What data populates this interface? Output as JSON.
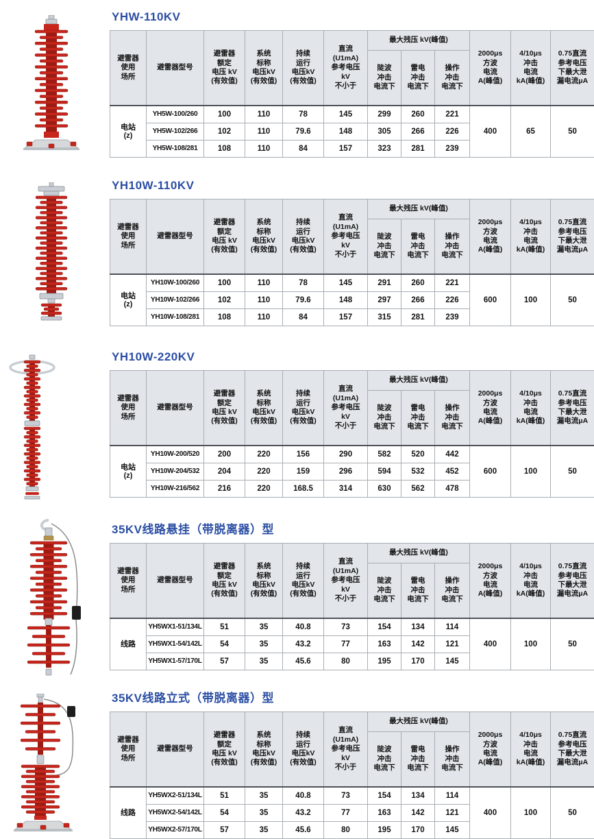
{
  "table_header": {
    "location": "避雷器\n使用\n场所",
    "model": "避雷器型号",
    "rated": "避雷器\n额定\n电压 kV\n(有效值)",
    "nominal": "系统\n标称\n电压kV\n(有效值)",
    "continuous": "持续\n运行\n电压kV\n(有效值)",
    "dc_ref": "直流\n(U1mA)\n参考电压\nkV\n不小于",
    "residual_group": "最大残压 kV(峰值)",
    "steep": "陡波\n冲击\n电流下",
    "lightning": "雷电\n冲击\n电流下",
    "switching": "操作\n冲击\n电流下",
    "square_wave": "2000μs\n方波\n电流\nA(峰值)",
    "impulse": "4/10μs\n冲击\n电流\nkA(峰值)",
    "leakage": "0.75直流\n参考电压\n下最大泄\n漏电流μA"
  },
  "accent_color": "#2b4ea4",
  "sections": [
    {
      "title": "YHW-110KV",
      "location": "电站\n(z)",
      "image_name": "station-pedestal-arrester-photo",
      "rows": [
        {
          "model": "YH5W-100/260",
          "values": [
            "100",
            "110",
            "78",
            "145",
            "299",
            "260",
            "221"
          ]
        },
        {
          "model": "YH5W-102/266",
          "values": [
            "102",
            "110",
            "79.6",
            "148",
            "305",
            "266",
            "226"
          ]
        },
        {
          "model": "YH5W-108/281",
          "values": [
            "108",
            "110",
            "84",
            "157",
            "323",
            "281",
            "239"
          ]
        }
      ],
      "square_wave": "400",
      "impulse": "65",
      "leakage": "50"
    },
    {
      "title": "YH10W-110KV",
      "location": "电站\n(z)",
      "image_name": "flanged-station-arrester-photo",
      "rows": [
        {
          "model": "YH10W-100/260",
          "values": [
            "100",
            "110",
            "78",
            "145",
            "291",
            "260",
            "221"
          ]
        },
        {
          "model": "YH10W-102/266",
          "values": [
            "102",
            "110",
            "79.6",
            "148",
            "297",
            "266",
            "226"
          ]
        },
        {
          "model": "YH10W-108/281",
          "values": [
            "108",
            "110",
            "84",
            "157",
            "315",
            "281",
            "239"
          ]
        }
      ],
      "square_wave": "600",
      "impulse": "100",
      "leakage": "50"
    },
    {
      "title": "YH10W-220KV",
      "location": "电站\n(z)",
      "image_name": "220kv-suspension-arrester-photo",
      "rows": [
        {
          "model": "YH10W-200/520",
          "values": [
            "200",
            "220",
            "156",
            "290",
            "582",
            "520",
            "442"
          ]
        },
        {
          "model": "YH10W-204/532",
          "values": [
            "204",
            "220",
            "159",
            "296",
            "594",
            "532",
            "452"
          ]
        },
        {
          "model": "YH10W-216/562",
          "values": [
            "216",
            "220",
            "168.5",
            "314",
            "630",
            "562",
            "478"
          ]
        }
      ],
      "square_wave": "600",
      "impulse": "100",
      "leakage": "50"
    },
    {
      "title": "35KV线路悬挂（带脱离器）型",
      "location": "线路",
      "image_name": "35kv-hanging-disconnector-arrester-photo",
      "rows": [
        {
          "model": "YH5WX1-51/134L",
          "values": [
            "51",
            "35",
            "40.8",
            "73",
            "154",
            "134",
            "114"
          ]
        },
        {
          "model": "YH5WX1-54/142L",
          "values": [
            "54",
            "35",
            "43.2",
            "77",
            "163",
            "142",
            "121"
          ]
        },
        {
          "model": "YH5WX1-57/170L",
          "values": [
            "57",
            "35",
            "45.6",
            "80",
            "195",
            "170",
            "145"
          ]
        }
      ],
      "square_wave": "400",
      "impulse": "100",
      "leakage": "50"
    },
    {
      "title": "35KV线路立式（带脱离器）型",
      "location": "线路",
      "image_name": "35kv-upright-disconnector-arrester-photo",
      "rows": [
        {
          "model": "YH5WX2-51/134L",
          "values": [
            "51",
            "35",
            "40.8",
            "73",
            "154",
            "134",
            "114"
          ]
        },
        {
          "model": "YH5WX2-54/142L",
          "values": [
            "54",
            "35",
            "43.2",
            "77",
            "163",
            "142",
            "121"
          ]
        },
        {
          "model": "YH5WX2-57/170L",
          "values": [
            "57",
            "35",
            "45.6",
            "80",
            "195",
            "170",
            "145"
          ]
        }
      ],
      "square_wave": "400",
      "impulse": "100",
      "leakage": "50"
    }
  ]
}
